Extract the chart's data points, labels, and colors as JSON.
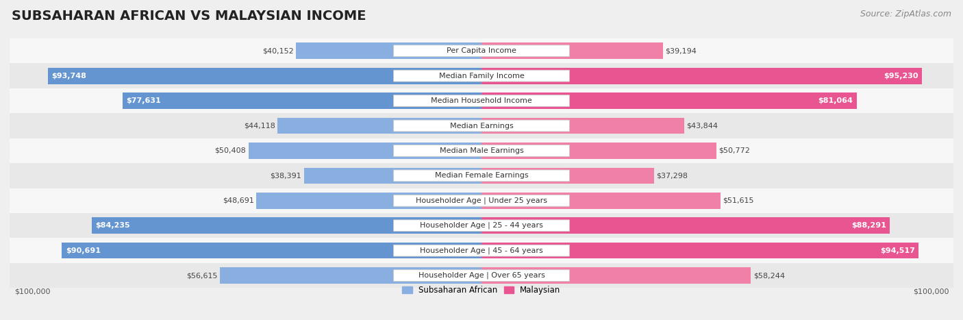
{
  "title": "SUBSAHARAN AFRICAN VS MALAYSIAN INCOME",
  "source": "Source: ZipAtlas.com",
  "categories": [
    "Per Capita Income",
    "Median Family Income",
    "Median Household Income",
    "Median Earnings",
    "Median Male Earnings",
    "Median Female Earnings",
    "Householder Age | Under 25 years",
    "Householder Age | 25 - 44 years",
    "Householder Age | 45 - 64 years",
    "Householder Age | Over 65 years"
  ],
  "subsaharan_values": [
    40152,
    93748,
    77631,
    44118,
    50408,
    38391,
    48691,
    84235,
    90691,
    56615
  ],
  "malaysian_values": [
    39194,
    95230,
    81064,
    43844,
    50772,
    37298,
    51615,
    88291,
    94517,
    58244
  ],
  "max_val": 100000,
  "blue_light": "#b8d0e8",
  "blue_mid": "#89afe0",
  "blue_dark": "#6495d0",
  "pink_light": "#f5b8cc",
  "pink_mid": "#f080a8",
  "pink_dark": "#e85590",
  "bg_color": "#efefef",
  "row_bg_odd": "#f7f7f7",
  "row_bg_even": "#e8e8e8",
  "label_box_color": "#ffffff",
  "label_box_border": "#cccccc",
  "title_fontsize": 14,
  "source_fontsize": 9,
  "value_fontsize": 8,
  "category_fontsize": 8,
  "legend_label_left": "Subsaharan African",
  "legend_label_right": "Malaysian",
  "x_tick_label": "$100,000",
  "large_threshold": 70000
}
